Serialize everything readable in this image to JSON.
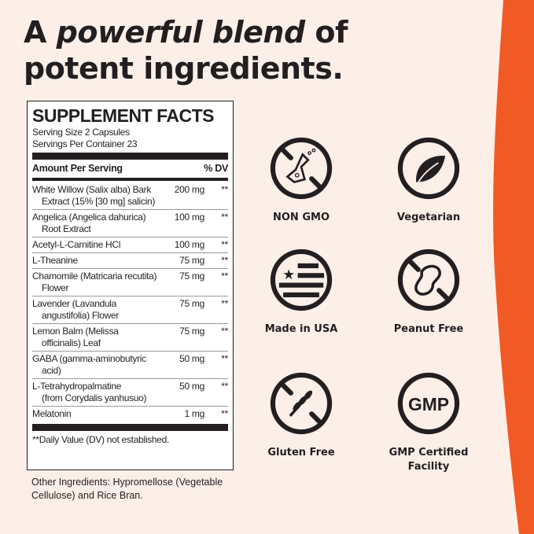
{
  "colors": {
    "background": "#fcefe8",
    "accent": "#f15a24",
    "ink": "#231f20"
  },
  "headline": {
    "line1_pre": "A ",
    "line1_em": "powerful blend",
    "line1_post": " of",
    "line2": "potent ingredients."
  },
  "facts": {
    "title": "SUPPLEMENT FACTS",
    "serving_size": "Serving Size 2 Capsules",
    "servings_per_container": "Servings Per Container 23",
    "header_amount": "Amount Per Serving",
    "header_dv": "% DV",
    "rows": [
      {
        "l1": "White Willow (Salix alba) Bark",
        "l2": "Extract (15% [30 mg] salicin)",
        "amount": "200 mg",
        "dv": "**"
      },
      {
        "l1": "Angelica (Angelica dahurica)",
        "l2": "Root Extract",
        "amount": "100 mg",
        "dv": "**"
      },
      {
        "l1": "Acetyl-L-Carnitine HCl",
        "l2": "",
        "amount": "100 mg",
        "dv": "**"
      },
      {
        "l1": "L-Theanine",
        "l2": "",
        "amount": "75 mg",
        "dv": "**"
      },
      {
        "l1": "Chamomile (Matricaria recutita)",
        "l2": "Flower",
        "amount": "75 mg",
        "dv": "**"
      },
      {
        "l1": "Lavender (Lavandula",
        "l2": "angustifolia) Flower",
        "amount": "75 mg",
        "dv": "**"
      },
      {
        "l1": "Lemon Balm (Melissa",
        "l2": "officinalis) Leaf",
        "amount": "75 mg",
        "dv": "**"
      },
      {
        "l1": "GABA (gamma-aminobutyric",
        "l2": "acid)",
        "amount": "50 mg",
        "dv": "**"
      },
      {
        "l1": "L-Tetrahydropalmatine",
        "l2": "(from Corydalis yanhusuo)",
        "amount": "50 mg",
        "dv": "**"
      },
      {
        "l1": "Melatonin",
        "l2": "",
        "amount": "1 mg",
        "dv": "**"
      }
    ],
    "footnote": "**Daily Value (DV) not established."
  },
  "other_ingredients": "Other Ingredients: Hypromellose (Vegetable Cellulose) and Rice Bran.",
  "badges": [
    {
      "icon": "flask-crossed-icon",
      "label": "NON GMO"
    },
    {
      "icon": "leaf-icon",
      "label": "Vegetarian"
    },
    {
      "icon": "us-flag-icon",
      "label": "Made in USA"
    },
    {
      "icon": "peanut-crossed-icon",
      "label": "Peanut Free"
    },
    {
      "icon": "wheat-crossed-icon",
      "label": "Gluten Free"
    },
    {
      "icon": "gmp-icon",
      "label": "GMP Certified Facility",
      "icon_text": "GMP"
    }
  ]
}
